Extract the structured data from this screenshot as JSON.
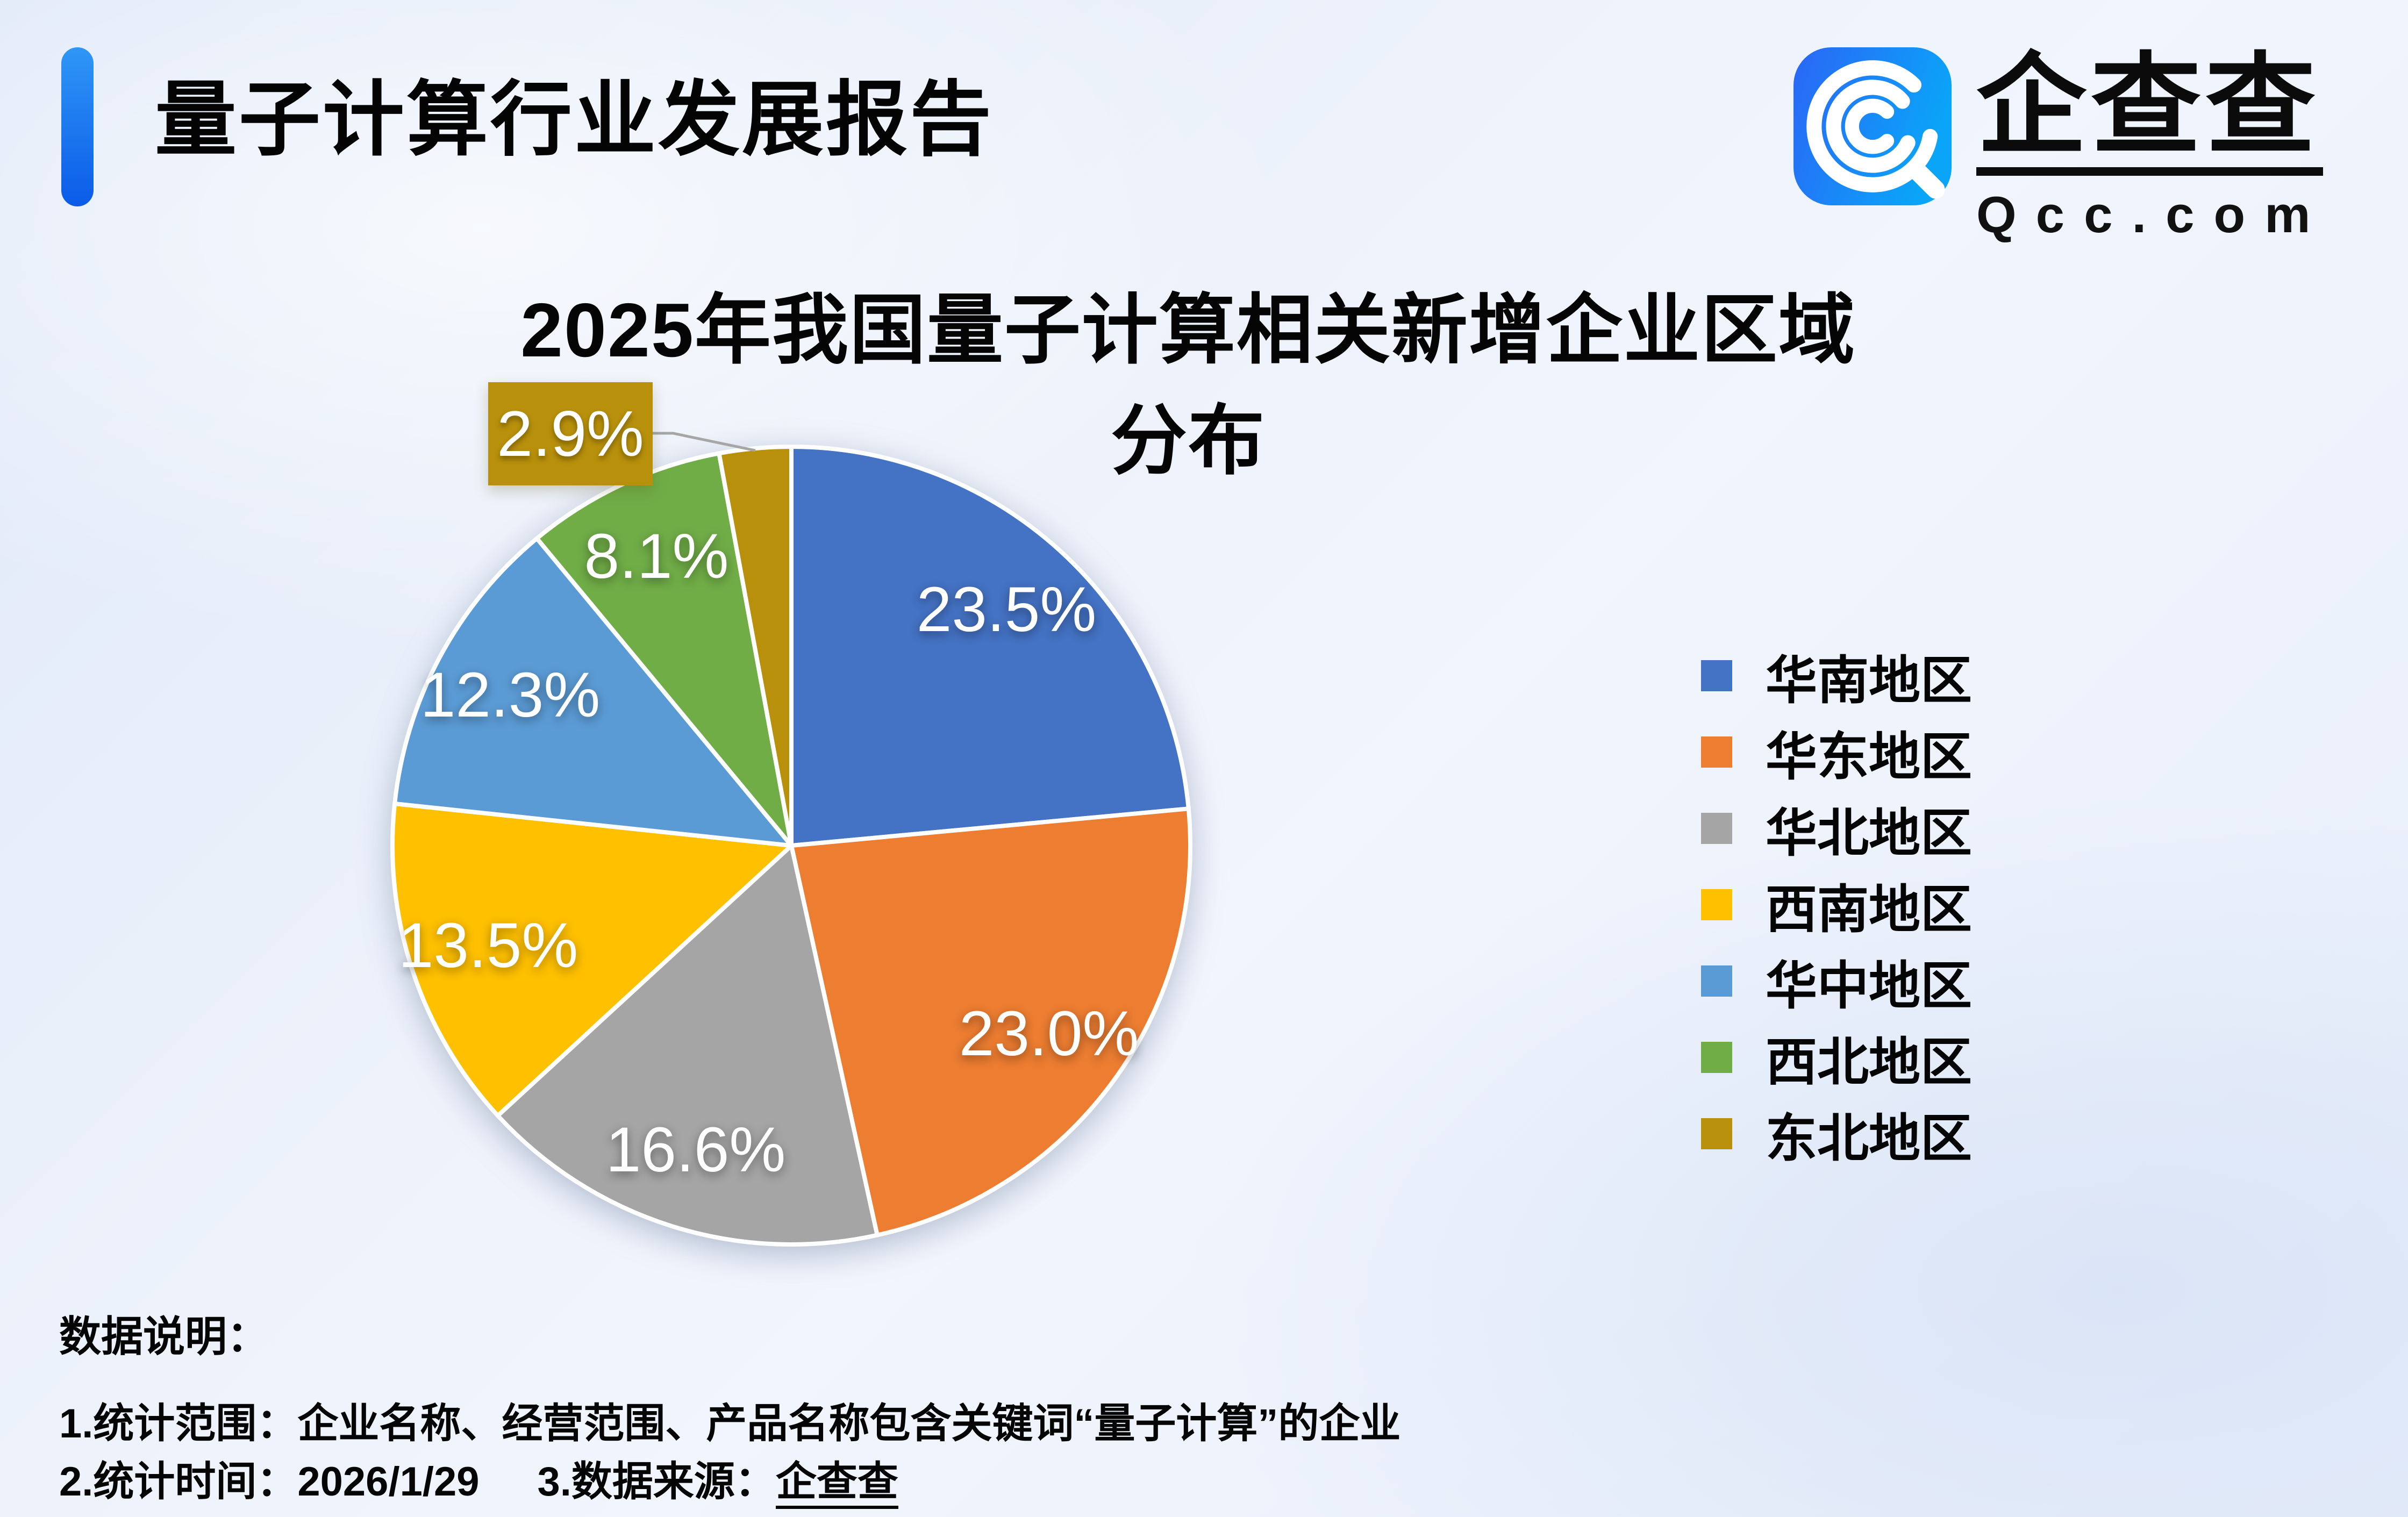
{
  "header": {
    "report_title": "量子计算行业发展报告"
  },
  "logo": {
    "name": "企查查",
    "domain": "Qcc.com",
    "icon": "qcc-magnifier-spiral",
    "icon_gradient": [
      "#2b66f6",
      "#0aa5f8"
    ]
  },
  "chart_data": {
    "type": "pie",
    "title": "2025年我国量子计算相关新增企业区域分布",
    "categories": [
      "华南地区",
      "华东地区",
      "华北地区",
      "西南地区",
      "华中地区",
      "西北地区",
      "东北地区"
    ],
    "values": [
      23.5,
      23.0,
      16.6,
      13.5,
      12.3,
      8.1,
      2.9
    ],
    "labels": [
      "23.5%",
      "23.0%",
      "16.6%",
      "13.5%",
      "12.3%",
      "8.1%",
      "2.9%"
    ],
    "colors": [
      "#4472C4",
      "#ED7D31",
      "#A5A5A5",
      "#FFC000",
      "#5B9BD5",
      "#70AD47",
      "#B8900B"
    ],
    "start_angle_deg": 0,
    "direction": "clockwise",
    "legend_position": "right",
    "slice_label_color": "#ffffff",
    "callout": {
      "category": "东北地区",
      "label": "2.9%",
      "leader_color": "#a6a6a6"
    }
  },
  "notes": {
    "heading": "数据说明：",
    "line1": "1.统计范围：企业名称、经营范围、产品名称包含关键词“量子计算”的企业",
    "line2_time": "2.统计时间：2026/1/29",
    "line2_source_prefix": "3.数据来源：",
    "line2_source": "企查查"
  },
  "colors": {
    "accent_bar": "#1273f0",
    "background": "#ebf1fb",
    "title_text": "#040404"
  }
}
